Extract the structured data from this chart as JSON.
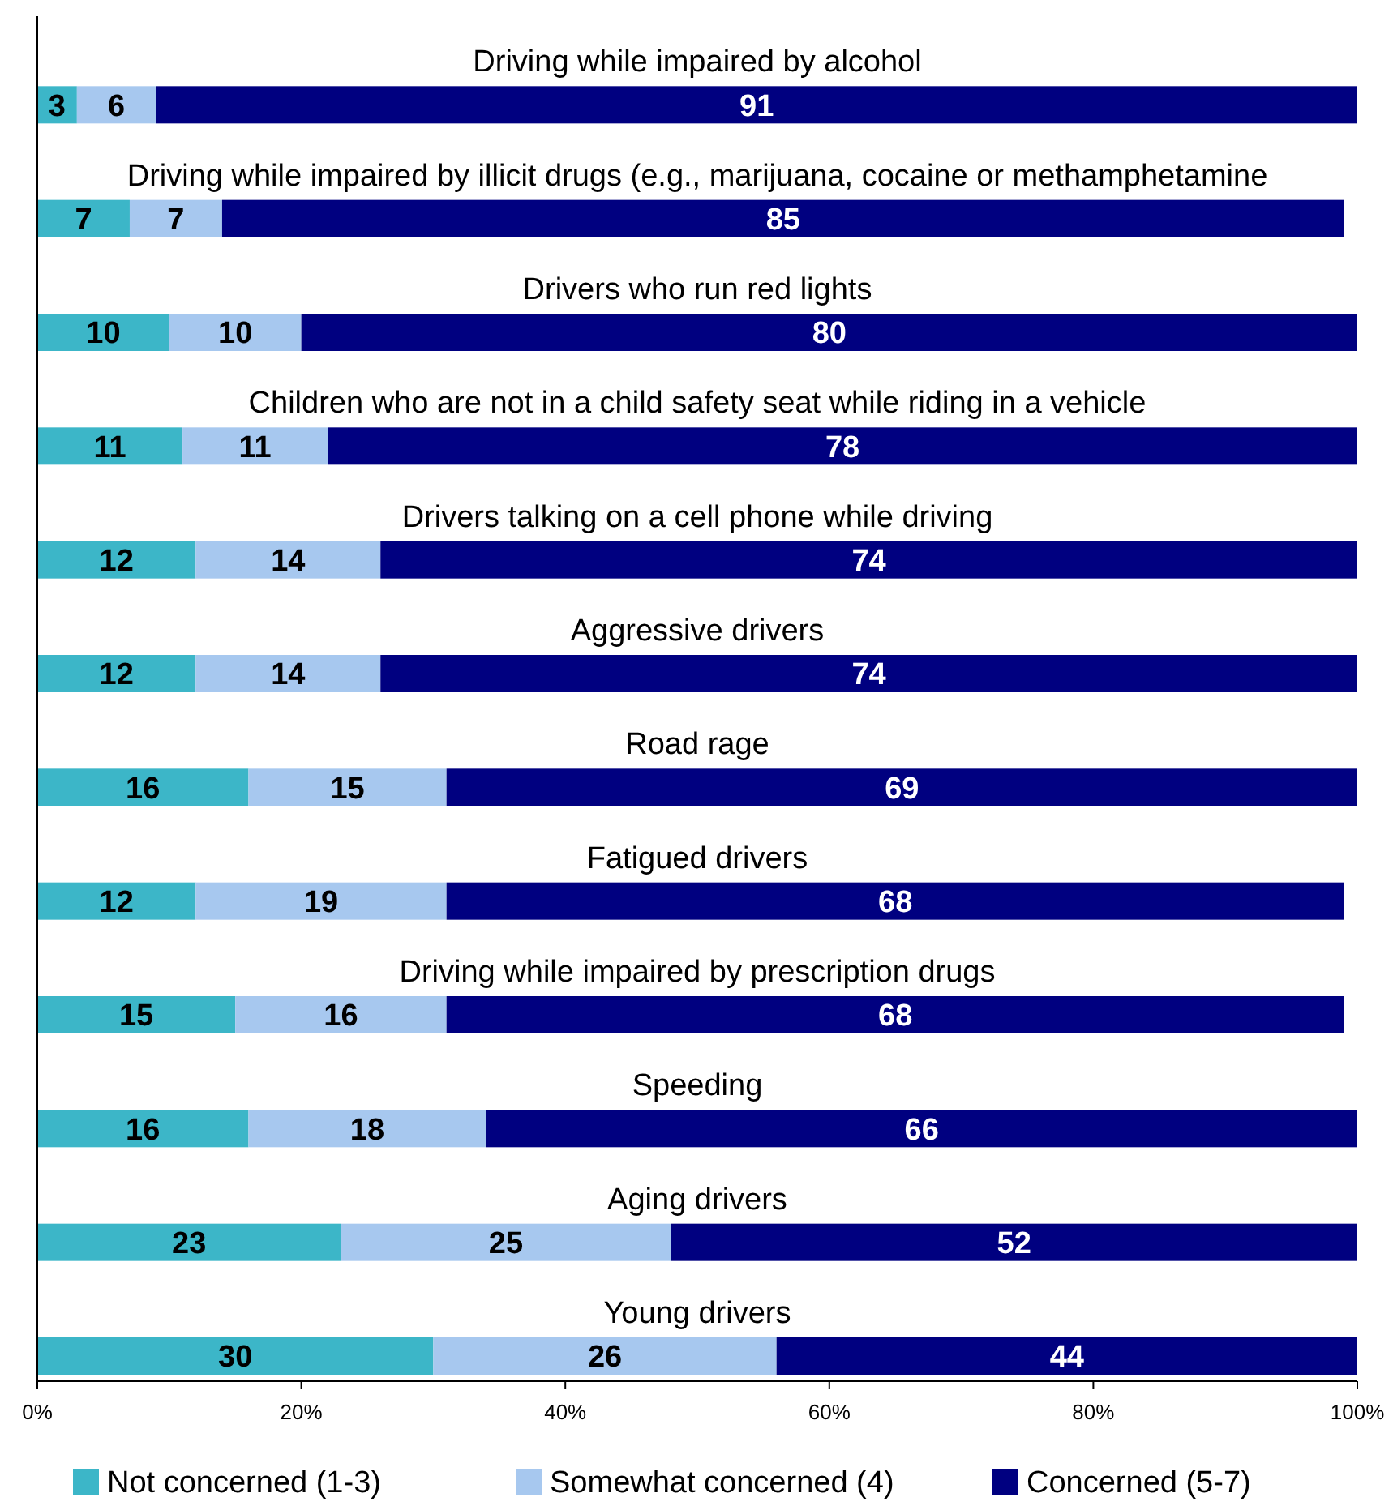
{
  "chart_data": {
    "type": "bar",
    "orientation": "horizontal",
    "stacked": true,
    "data_labels": true,
    "legend": "bottom",
    "grid": false,
    "categories": [
      "Driving while impaired by alcohol",
      "Driving while impaired by illicit drugs (e.g., marijuana, cocaine or methamphetamine",
      "Drivers who run red lights",
      "Children who are not in a child safety seat while riding in a vehicle",
      "Drivers talking on a cell phone while driving",
      "Aggressive drivers",
      "Road rage",
      "Fatigued drivers",
      "Driving while impaired by prescription drugs",
      "Speeding",
      "Aging drivers",
      "Young drivers"
    ],
    "series": [
      {
        "name": "Not concerned (1-3)",
        "color": "#3cb6c8",
        "values": [
          3,
          7,
          10,
          11,
          12,
          12,
          16,
          12,
          15,
          16,
          23,
          30
        ]
      },
      {
        "name": "Somewhat concerned (4)",
        "color": "#a7c8ef",
        "values": [
          6,
          7,
          10,
          11,
          14,
          14,
          15,
          19,
          16,
          18,
          25,
          26
        ]
      },
      {
        "name": "Concerned (5-7)",
        "color": "#000080",
        "values": [
          91,
          85,
          80,
          78,
          74,
          74,
          69,
          68,
          68,
          66,
          52,
          44
        ]
      }
    ],
    "xlim": [
      0,
      100
    ],
    "xticks": [
      {
        "value": 0,
        "label": "0%"
      },
      {
        "value": 20,
        "label": "20%"
      },
      {
        "value": 40,
        "label": "40%"
      },
      {
        "value": 60,
        "label": "60%"
      },
      {
        "value": 80,
        "label": "80%"
      },
      {
        "value": 100,
        "label": "100%"
      }
    ]
  }
}
